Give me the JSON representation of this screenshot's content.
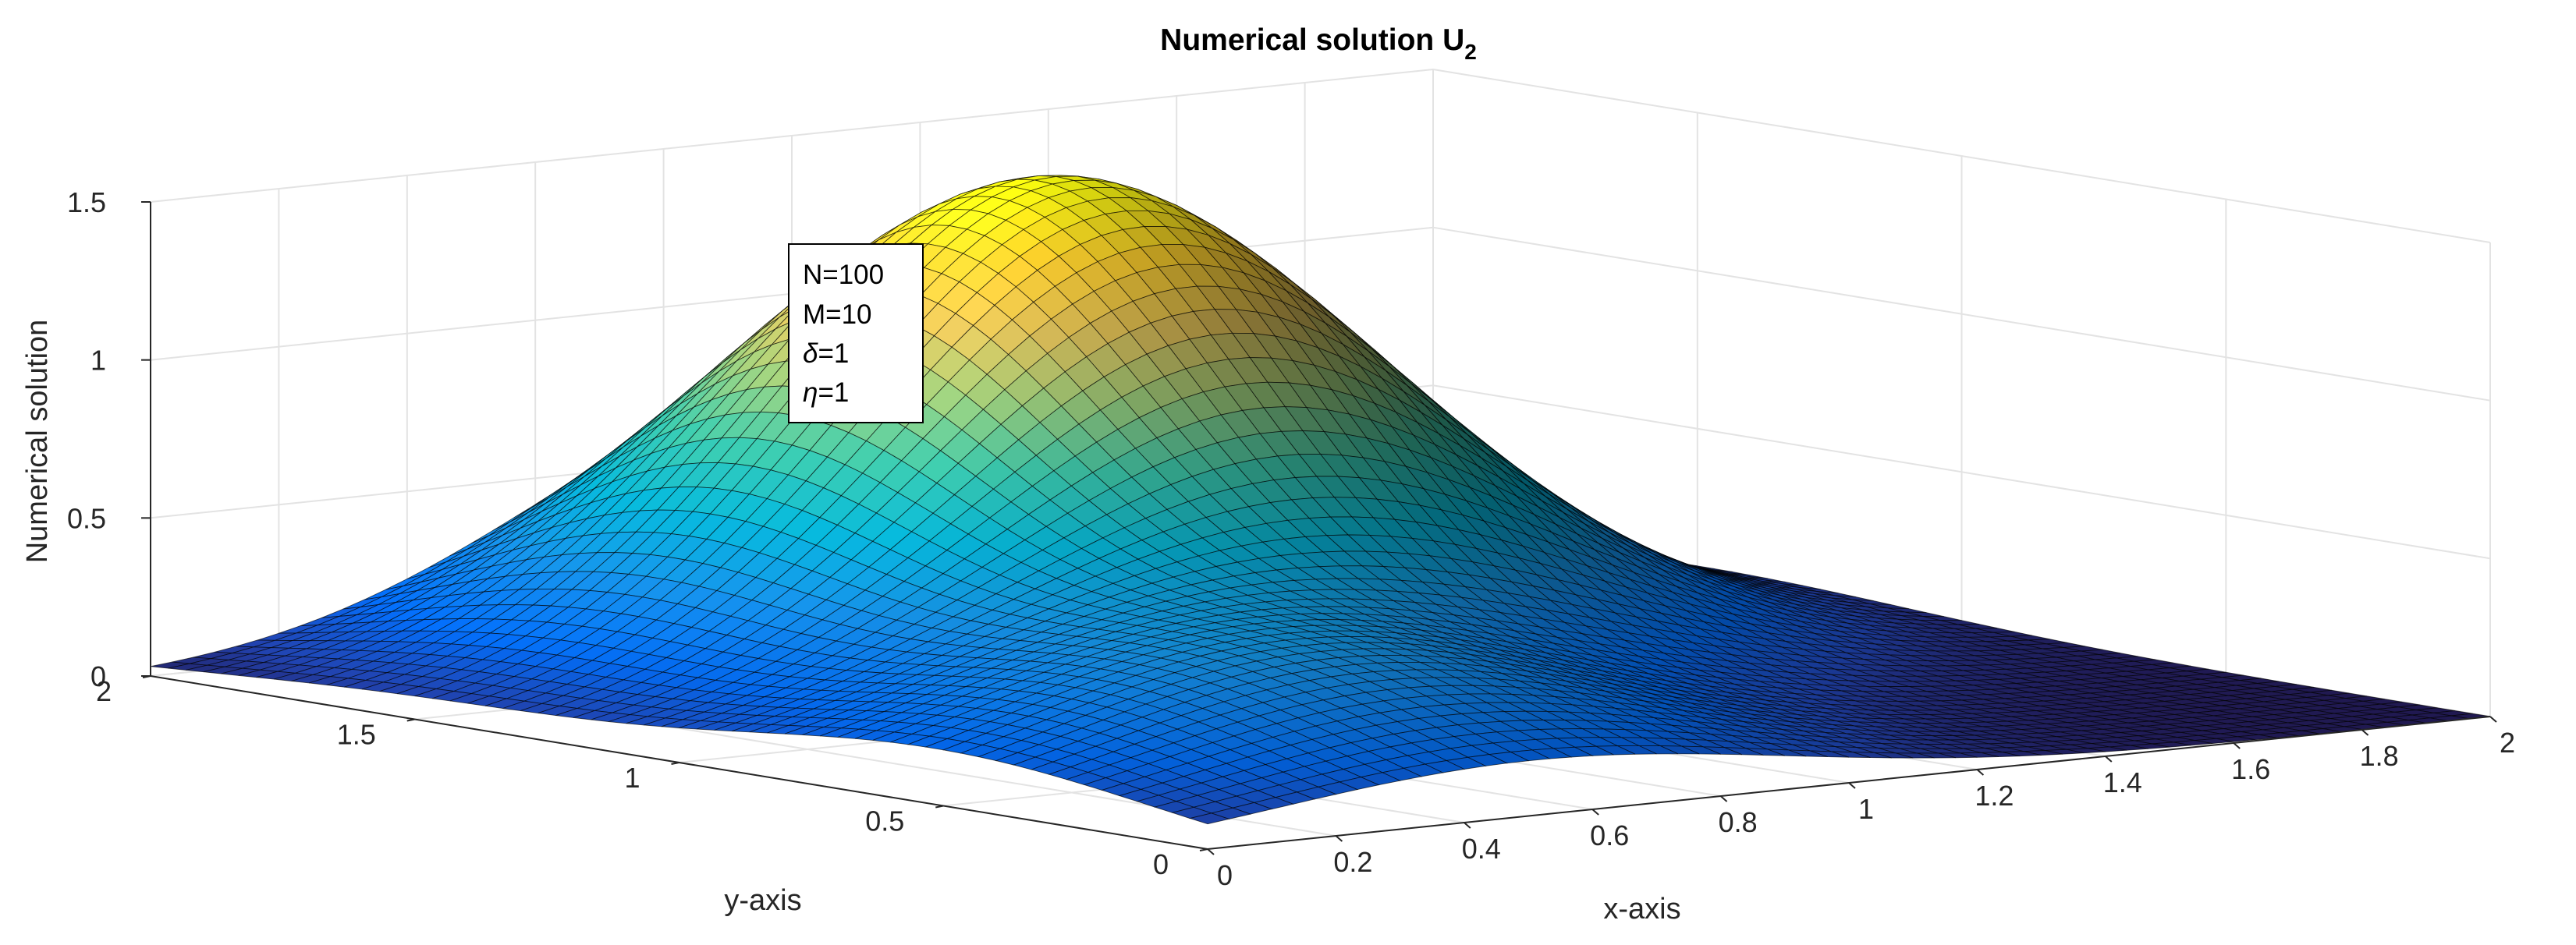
{
  "chart_data": {
    "type": "surface",
    "title": "Numerical solution U",
    "title_subscript": "2",
    "xlabel": "x-axis",
    "ylabel": "y-axis",
    "zlabel": "Numerical solution",
    "xlim": [
      0,
      2
    ],
    "ylim": [
      0,
      2
    ],
    "zlim": [
      0,
      1.5
    ],
    "x_ticks": [
      "0",
      "0.2",
      "0.4",
      "0.6",
      "0.8",
      "1",
      "1.2",
      "1.4",
      "1.6",
      "1.8",
      "2"
    ],
    "x_tick_values": [
      0,
      0.2,
      0.4,
      0.6,
      0.8,
      1,
      1.2,
      1.4,
      1.6,
      1.8,
      2
    ],
    "y_ticks": [
      "0",
      "0.5",
      "1",
      "1.5",
      "2"
    ],
    "y_tick_values": [
      0,
      0.5,
      1,
      1.5,
      2
    ],
    "z_ticks": [
      "0",
      "0.5",
      "1",
      "1.5"
    ],
    "z_tick_values": [
      0,
      0.5,
      1,
      1.5
    ],
    "grid": true,
    "colormap": "parula",
    "mesh_resolution": 60,
    "surface_description": {
      "peaks": [
        {
          "x_center": 1.0,
          "y_center": 1.5,
          "height": 1.5,
          "spread": 0.4
        },
        {
          "x_center": 0.5,
          "y_center": 0.5,
          "height": 0.38,
          "spread": 0.4
        }
      ]
    },
    "annotation": {
      "lines": [
        {
          "symbol": "N",
          "italic": false,
          "value": "=100"
        },
        {
          "symbol": "M",
          "italic": false,
          "value": "=10"
        },
        {
          "symbol": "δ",
          "italic": true,
          "value": "=1"
        },
        {
          "symbol": "η",
          "italic": true,
          "value": "=1"
        }
      ]
    }
  },
  "colors": {
    "parula": [
      "#352a87",
      "#0363e1",
      "#1485d4",
      "#06a7c6",
      "#38b99e",
      "#92bf73",
      "#d9ba56",
      "#fcce2e",
      "#f9fb0e"
    ],
    "mesh_edge": "#000000",
    "grid": "#e3e3e3",
    "axis": "#262626"
  }
}
